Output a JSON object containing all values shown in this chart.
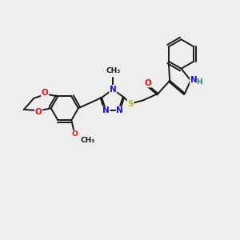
{
  "bg_color": "#eeeeee",
  "bond_color": "#1a1a1a",
  "bond_width": 1.4,
  "dbo": 0.055,
  "atom_colors": {
    "N": "#1010ee",
    "O": "#ee1010",
    "S": "#bbbb00",
    "H": "#008888",
    "C": "#1a1a1a"
  },
  "fs_main": 7.5,
  "fs_small": 6.5
}
